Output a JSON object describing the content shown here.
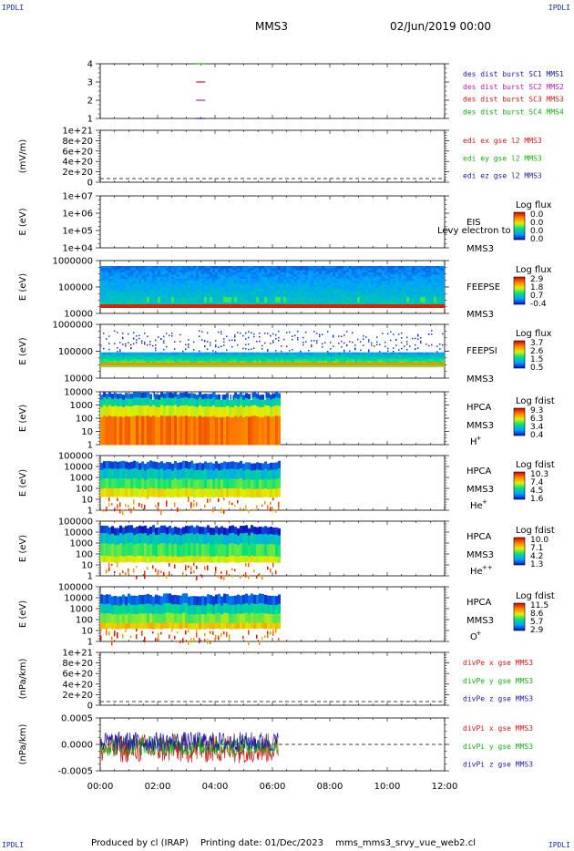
{
  "header": {
    "left_tag": "IPDLI",
    "right_tag": "IPDLI",
    "bottom_left_tag": "IPDLI",
    "bottom_right_tag": "IPDLI",
    "spacecraft": "MMS3",
    "datetime": "02/Jun/2019 00:00"
  },
  "footer": {
    "produced_by": "Produced by cl (IRAP)",
    "printing_date": "Printing date: 01/Dec/2023",
    "filename": "mms_mms3_srvy_vue_web2.cl"
  },
  "chart_data": {
    "type": "multi-panel time series",
    "x_ticks": [
      "00:00",
      "02:00",
      "04:00",
      "06:00",
      "08:00",
      "10:00",
      "12:00"
    ],
    "x_range_hours": [
      0,
      12
    ],
    "data_coverage_hours": [
      0,
      6.2
    ],
    "panels": [
      {
        "kind": "coverage",
        "ylabel": "",
        "yticks": [
          "4",
          "3",
          "2",
          "1"
        ],
        "legend": [
          {
            "label": "des dist burst SC1 MMS1",
            "color": "#1a1aa8"
          },
          {
            "label": "des dist burst SC2 MMS2",
            "color": "#b020b0"
          },
          {
            "label": "des dist burst SC3 MMS3",
            "color": "#d01818"
          },
          {
            "label": "des dist burst SC4 MMS4",
            "color": "#10b010"
          }
        ],
        "marks": [
          {
            "sc": 4,
            "color": "#10b010",
            "x_hours": 3.5
          },
          {
            "sc": 3,
            "color": "#d01818",
            "x_hours": 3.5
          },
          {
            "sc": 2,
            "color": "#b020b0",
            "x_hours": 3.5
          },
          {
            "sc": 1,
            "color": "#1a1aa8",
            "x_hours": 3.5
          }
        ]
      },
      {
        "kind": "line-empty",
        "ylabel": "(mV/m)",
        "yticks": [
          "1e+21",
          "8e+20",
          "6e+20",
          "4e+20",
          "2e+20",
          "0"
        ],
        "legend": [
          {
            "label": "edi ex gse l2 MMS3",
            "color": "#d01818"
          },
          {
            "label": "edi ey gse l2 MMS3",
            "color": "#10b010"
          },
          {
            "label": "edi ez gse l2 MMS3",
            "color": "#1a1aa8"
          }
        ]
      },
      {
        "kind": "spectrogram-empty",
        "ylabel": "E (eV)",
        "yticks": [
          "1e+07",
          "1e+06",
          "1e+05",
          "1e+04"
        ],
        "instrument": "EIS",
        "species": "MMS3",
        "overlay_text": "Levy electron to",
        "cbar_title": "Log flux",
        "cbar_ticks": [
          "0.0",
          "0.0",
          "0.0",
          "0.0"
        ]
      },
      {
        "kind": "spectrogram",
        "ylabel": "E (eV)",
        "yticks": [
          "1000000",
          "100000",
          "10000"
        ],
        "instrument": "FEEPSE",
        "species": "MMS3",
        "cbar_title": "Log flux",
        "cbar_ticks": [
          "2.9",
          "1.8",
          "0.7",
          "-0.4"
        ],
        "pattern": "feepse"
      },
      {
        "kind": "spectrogram",
        "ylabel": "E (eV)",
        "yticks": [
          "1000000",
          "100000",
          "10000"
        ],
        "instrument": "FEEPSI",
        "species": "MMS3",
        "cbar_title": "Log flux",
        "cbar_ticks": [
          "3.7",
          "2.6",
          "1.5",
          "0.5"
        ],
        "pattern": "feepsi"
      },
      {
        "kind": "spectrogram",
        "ylabel": "E (eV)",
        "yticks": [
          "10000",
          "1000",
          "100",
          "10",
          "1"
        ],
        "instrument": "HPCA",
        "species": "MMS3",
        "ion": "H",
        "ion_sup": "+",
        "cbar_title": "Log fdist",
        "cbar_ticks": [
          "9.3",
          "6.3",
          "3.4",
          "0.4"
        ],
        "pattern": "hplus"
      },
      {
        "kind": "spectrogram",
        "ylabel": "E (eV)",
        "yticks": [
          "100000",
          "10000",
          "1000",
          "100",
          "10",
          "1"
        ],
        "instrument": "HPCA",
        "species": "MMS3",
        "ion": "He",
        "ion_sup": "+",
        "cbar_title": "Log fdist",
        "cbar_ticks": [
          "10.3",
          "7.4",
          "4.5",
          "1.6"
        ],
        "pattern": "heplus"
      },
      {
        "kind": "spectrogram",
        "ylabel": "E (eV)",
        "yticks": [
          "100000",
          "10000",
          "1000",
          "100",
          "10",
          "1"
        ],
        "instrument": "HPCA",
        "species": "MMS3",
        "ion": "He",
        "ion_sup": "++",
        "cbar_title": "Log fdist",
        "cbar_ticks": [
          "10.0",
          "7.1",
          "4.2",
          "1.3"
        ],
        "pattern": "heplusplus"
      },
      {
        "kind": "spectrogram",
        "ylabel": "E (eV)",
        "yticks": [
          "100000",
          "10000",
          "1000",
          "100",
          "10",
          "1"
        ],
        "instrument": "HPCA",
        "species": "MMS3",
        "ion": "O",
        "ion_sup": "+",
        "cbar_title": "Log fdist",
        "cbar_ticks": [
          "11.5",
          "8.6",
          "5.7",
          "2.9"
        ],
        "pattern": "oplus"
      },
      {
        "kind": "line-empty",
        "ylabel": "(nPa/km)",
        "yticks": [
          "1e+21",
          "8e+20",
          "6e+20",
          "4e+20",
          "2e+20",
          "0"
        ],
        "legend": [
          {
            "label": "divPe x gse MMS3",
            "color": "#d01818"
          },
          {
            "label": "divPe y gse MMS3",
            "color": "#10b010"
          },
          {
            "label": "divPe z gse MMS3",
            "color": "#1a1aa8"
          }
        ]
      },
      {
        "kind": "line",
        "ylabel": "(nPa/km)",
        "yticks": [
          "0.0005",
          "0.0000",
          "-0.0005"
        ],
        "ylim": [
          -0.0008,
          0.0008
        ],
        "legend": [
          {
            "label": "divPi x gse MMS3",
            "color": "#d01818"
          },
          {
            "label": "divPi y gse MMS3",
            "color": "#10b010"
          },
          {
            "label": "divPi z gse MMS3",
            "color": "#1a1aa8"
          }
        ],
        "series_amplitude": [
          0.00045,
          0.0003,
          0.0003
        ]
      }
    ]
  }
}
